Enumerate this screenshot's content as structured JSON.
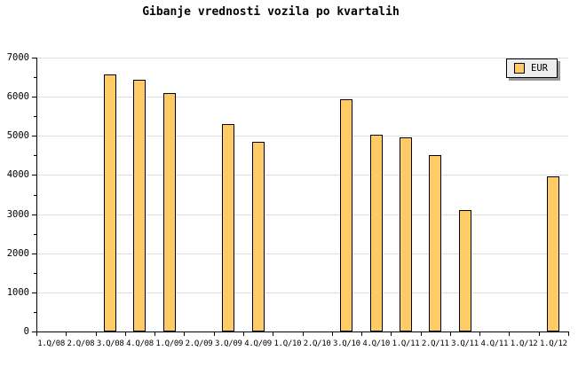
{
  "title": "Gibanje vrednosti vozila po kvartalih",
  "legend": {
    "label": "EUR"
  },
  "colors": {
    "background": "#ffffff",
    "bar_fill": "#ffcb66",
    "bar_border": "#000000",
    "grid": "#dddddd",
    "axis": "#000000",
    "text": "#000000",
    "legend_bg": "#ededed",
    "legend_border": "#000000",
    "legend_shadow": "#999999"
  },
  "chart_data": {
    "type": "bar",
    "title": "Gibanje vrednosti vozila po kvartalih",
    "xlabel": "",
    "ylabel": "",
    "categories": [
      "1.Q/08",
      "2.Q/08",
      "3.Q/08",
      "4.Q/08",
      "1.Q/09",
      "2.Q/09",
      "3.Q/09",
      "4.Q/09",
      "1.Q/10",
      "2.Q/10",
      "3.Q/10",
      "4.Q/10",
      "1.Q/11",
      "2.Q/11",
      "3.Q/11",
      "4.Q/11",
      "1.Q/12",
      "1.Q/12"
    ],
    "series": [
      {
        "name": "EUR",
        "values": [
          null,
          null,
          6560,
          6440,
          6100,
          null,
          5300,
          4840,
          null,
          null,
          5930,
          5040,
          4960,
          4500,
          3100,
          null,
          null,
          3970
        ]
      }
    ],
    "ylim": [
      0,
      7000
    ],
    "yticks": [
      0,
      1000,
      2000,
      3000,
      4000,
      5000,
      6000,
      7000
    ],
    "ytick_minor_step": 500,
    "grid": "horizontal-major",
    "legend_position": "top-right",
    "notes": "bars only on quarters with values; other quarters empty"
  }
}
